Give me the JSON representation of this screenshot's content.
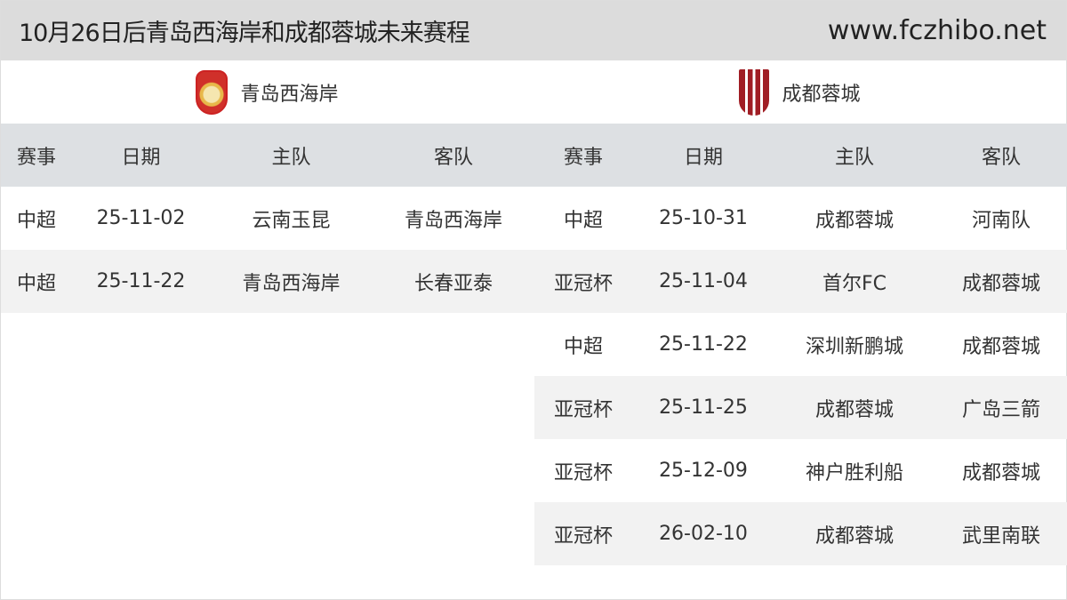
{
  "header": {
    "title": "10月26日后青岛西海岸和成都蓉城未来赛程",
    "site": "www.fczhibo.net"
  },
  "teams": [
    {
      "name": "青岛西海岸",
      "logo": "qingdao-west-coast-crest"
    },
    {
      "name": "成都蓉城",
      "logo": "chengdu-rongcheng-crest"
    }
  ],
  "columns": [
    "赛事",
    "日期",
    "主队",
    "客队"
  ],
  "left": [
    [
      "中超",
      "25-11-02",
      "云南玉昆",
      "青岛西海岸"
    ],
    [
      "中超",
      "25-11-22",
      "青岛西海岸",
      "长春亚泰"
    ]
  ],
  "right": [
    [
      "中超",
      "25-10-31",
      "成都蓉城",
      "河南队"
    ],
    [
      "亚冠杯",
      "25-11-04",
      "首尔FC",
      "成都蓉城"
    ],
    [
      "中超",
      "25-11-22",
      "深圳新鹏城",
      "成都蓉城"
    ],
    [
      "亚冠杯",
      "25-11-25",
      "成都蓉城",
      "广岛三箭"
    ],
    [
      "亚冠杯",
      "25-12-09",
      "神户胜利船",
      "成都蓉城"
    ],
    [
      "亚冠杯",
      "26-02-10",
      "成都蓉城",
      "武里南联"
    ]
  ]
}
